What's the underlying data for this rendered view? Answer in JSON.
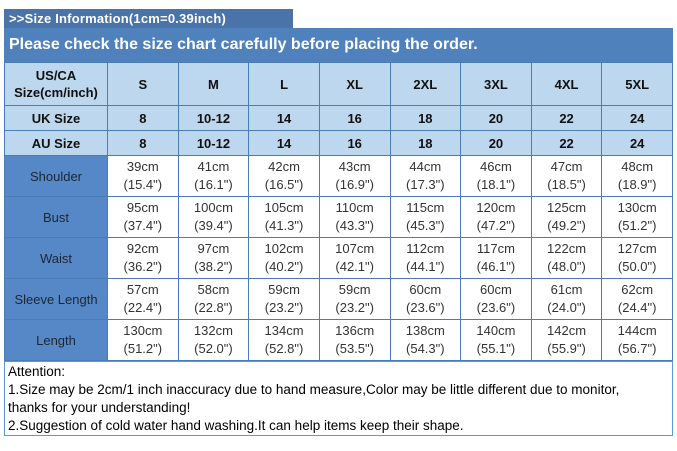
{
  "title_bar": {
    "text": ">>Size Information(1cm=0.39inch)"
  },
  "banner": {
    "text": "Please check the size chart carefully before placing the order."
  },
  "table": {
    "corner": {
      "line1": "US/CA",
      "line2": "Size(cm/inch)"
    },
    "sizes": [
      "S",
      "M",
      "L",
      "XL",
      "2XL",
      "3XL",
      "4XL",
      "5XL"
    ],
    "size_rows": [
      {
        "label": "UK Size",
        "values": [
          "8",
          "10-12",
          "14",
          "16",
          "18",
          "20",
          "22",
          "24"
        ]
      },
      {
        "label": "AU Size",
        "values": [
          "8",
          "10-12",
          "14",
          "16",
          "18",
          "20",
          "22",
          "24"
        ]
      }
    ],
    "measure_rows": [
      {
        "label": "Shoulder",
        "cm": [
          "39cm",
          "41cm",
          "42cm",
          "43cm",
          "44cm",
          "46cm",
          "47cm",
          "48cm"
        ],
        "inch": [
          "(15.4\")",
          "(16.1\")",
          "(16.5\")",
          "(16.9\")",
          "(17.3\")",
          "(18.1\")",
          "(18.5\")",
          "(18.9\")"
        ]
      },
      {
        "label": "Bust",
        "cm": [
          "95cm",
          "100cm",
          "105cm",
          "110cm",
          "115cm",
          "120cm",
          "125cm",
          "130cm"
        ],
        "inch": [
          "(37.4\")",
          "(39.4\")",
          "(41.3\")",
          "(43.3\")",
          "(45.3\")",
          "(47.2\")",
          "(49.2\")",
          "(51.2\")"
        ]
      },
      {
        "label": "Waist",
        "cm": [
          "92cm",
          "97cm",
          "102cm",
          "107cm",
          "112cm",
          "117cm",
          "122cm",
          "127cm"
        ],
        "inch": [
          "(36.2\")",
          "(38.2\")",
          "(40.2\")",
          "(42.1\")",
          "(44.1\")",
          "(46.1\")",
          "(48.0\")",
          "(50.0\")"
        ]
      },
      {
        "label": "Sleeve Length",
        "cm": [
          "57cm",
          "58cm",
          "59cm",
          "59cm",
          "60cm",
          "60cm",
          "61cm",
          "62cm"
        ],
        "inch": [
          "(22.4\")",
          "(22.8\")",
          "(23.2\")",
          "(23.2\")",
          "(23.6\")",
          "(23.6\")",
          "(24.0\")",
          "(24.4\")"
        ]
      },
      {
        "label": "Length",
        "cm": [
          "130cm",
          "132cm",
          "134cm",
          "136cm",
          "138cm",
          "140cm",
          "142cm",
          "144cm"
        ],
        "inch": [
          "(51.2\")",
          "(52.0\")",
          "(52.8\")",
          "(53.5\")",
          "(54.3\")",
          "(55.1\")",
          "(55.9\")",
          "(56.7\")"
        ]
      }
    ]
  },
  "attention": {
    "lines": [
      "Attention:",
      "1.Size may be 2cm/1 inch inaccuracy due to hand measure,Color may be little different due to monitor,",
      "thanks for your understanding!",
      "2.Suggestion of cold water hand washing.It can help items keep their shape."
    ]
  },
  "colors": {
    "title_bar_bg": "#4a73a9",
    "banner_bg": "#4f81bd",
    "header_bg": "#bdd7ee",
    "measure_label_bg": "#5688c7",
    "cell_border": "#4a7cb8",
    "attention_border": "#5b9bd5",
    "white_text": "#ffffff"
  },
  "chart_data": {
    "type": "table",
    "title": ">>Size Information(1cm=0.39inch)",
    "subtitle": "Please check the size chart carefully before placing the order.",
    "columns": [
      "US/CA Size(cm/inch)",
      "S",
      "M",
      "L",
      "XL",
      "2XL",
      "3XL",
      "4XL",
      "5XL"
    ],
    "rows": [
      [
        "UK Size",
        "8",
        "10-12",
        "14",
        "16",
        "18",
        "20",
        "22",
        "24"
      ],
      [
        "AU Size",
        "8",
        "10-12",
        "14",
        "16",
        "18",
        "20",
        "22",
        "24"
      ],
      [
        "Shoulder",
        "39cm (15.4\")",
        "41cm (16.1\")",
        "42cm (16.5\")",
        "43cm (16.9\")",
        "44cm (17.3\")",
        "46cm (18.1\")",
        "47cm (18.5\")",
        "48cm (18.9\")"
      ],
      [
        "Bust",
        "95cm (37.4\")",
        "100cm (39.4\")",
        "105cm (41.3\")",
        "110cm (43.3\")",
        "115cm (45.3\")",
        "120cm (47.2\")",
        "125cm (49.2\")",
        "130cm (51.2\")"
      ],
      [
        "Waist",
        "92cm (36.2\")",
        "97cm (38.2\")",
        "102cm (40.2\")",
        "107cm (42.1\")",
        "112cm (44.1\")",
        "117cm (46.1\")",
        "122cm (48.0\")",
        "127cm (50.0\")"
      ],
      [
        "Sleeve Length",
        "57cm (22.4\")",
        "58cm (22.8\")",
        "59cm (23.2\")",
        "59cm (23.2\")",
        "60cm (23.6\")",
        "60cm (23.6\")",
        "61cm (24.0\")",
        "62cm (24.4\")"
      ],
      [
        "Length",
        "130cm (51.2\")",
        "132cm (52.0\")",
        "134cm (52.8\")",
        "136cm (53.5\")",
        "138cm (54.3\")",
        "140cm (55.1\")",
        "142cm (55.9\")",
        "144cm (56.7\")"
      ]
    ],
    "notes": [
      "Attention:",
      "1.Size may be 2cm/1 inch inaccuracy due to hand measure,Color may be little different due to monitor, thanks for your understanding!",
      "2.Suggestion of cold water hand washing.It can help items keep their shape."
    ]
  }
}
